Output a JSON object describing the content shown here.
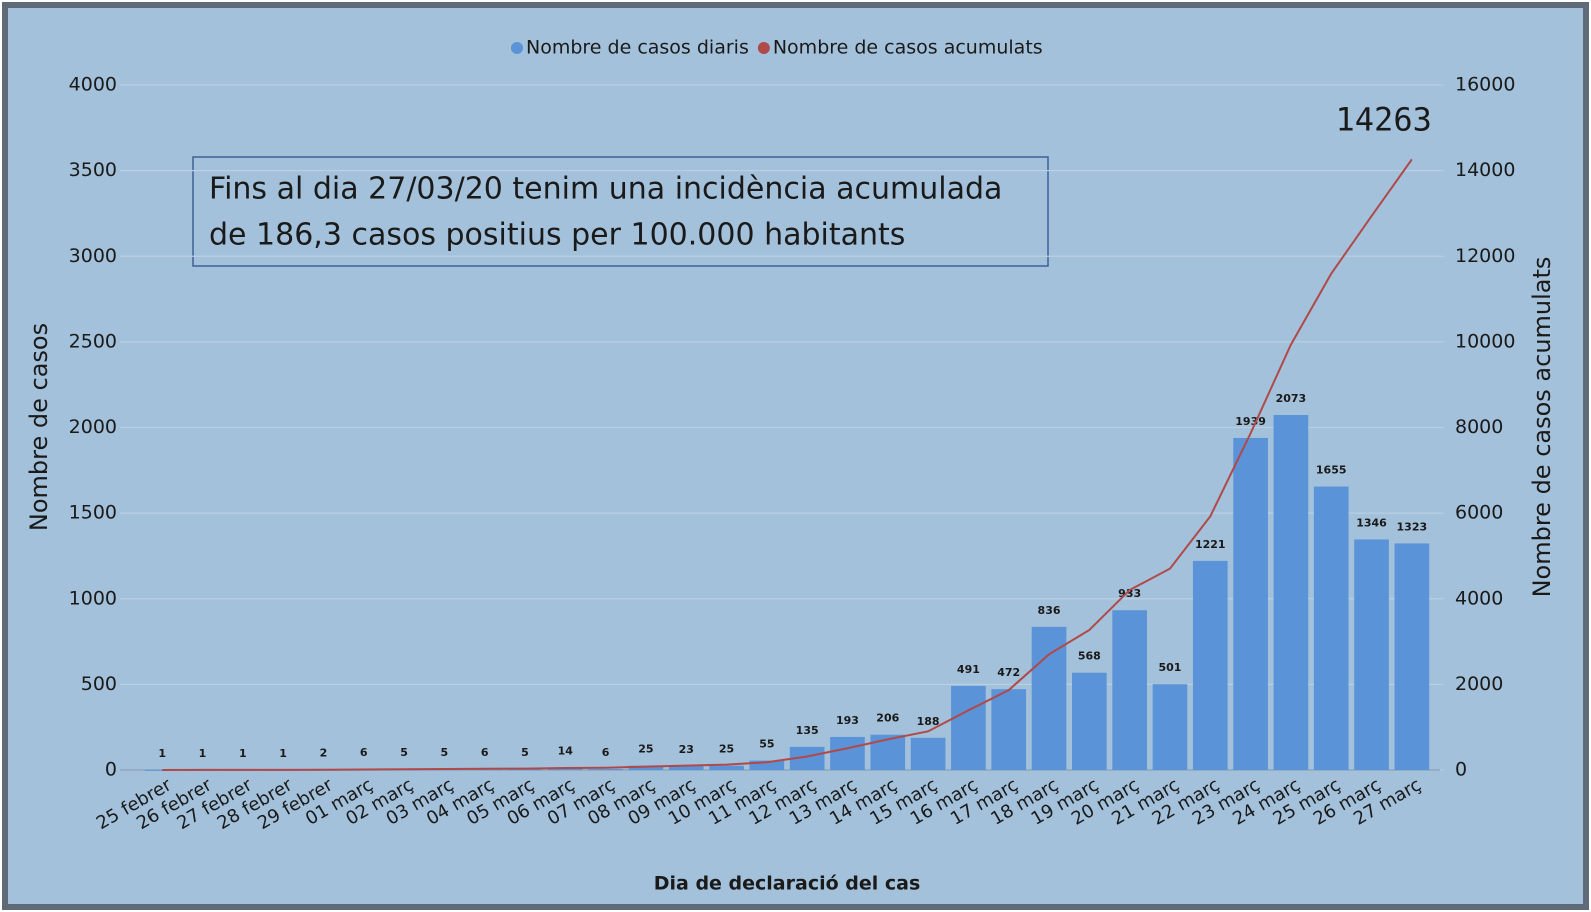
{
  "chart_data": {
    "type": "bar",
    "legend": "top",
    "categories": [
      "25 febrer",
      "26 febrer",
      "27 febrer",
      "28 febrer",
      "29 febrer",
      "01 març",
      "02 març",
      "03 març",
      "04 març",
      "05 març",
      "06 març",
      "07 març",
      "08 març",
      "09 març",
      "10 març",
      "11 març",
      "12 març",
      "13 març",
      "14 març",
      "15 març",
      "16 març",
      "17 març",
      "18 març",
      "19 març",
      "20 març",
      "21 març",
      "22 març",
      "23 març",
      "24 març",
      "25 març",
      "26 març",
      "27 març"
    ],
    "series": [
      {
        "name": "Nombre de casos diaris",
        "type": "bar",
        "color": "#5b93d8",
        "values": [
          1,
          1,
          1,
          1,
          2,
          6,
          5,
          5,
          6,
          5,
          14,
          6,
          25,
          23,
          25,
          55,
          135,
          193,
          206,
          188,
          491,
          472,
          836,
          568,
          933,
          501,
          1221,
          1939,
          2073,
          1655,
          1346,
          1323
        ]
      },
      {
        "name": "Nombre de casos acumulats",
        "type": "line",
        "axis": "y2",
        "color": "#b04a4a",
        "values": [
          1,
          2,
          3,
          4,
          6,
          12,
          17,
          22,
          28,
          33,
          47,
          53,
          78,
          101,
          126,
          181,
          316,
          509,
          715,
          903,
          1394,
          1866,
          2702,
          3270,
          4203,
          4704,
          5925,
          7864,
          9937,
          11592,
          12938,
          14263
        ]
      }
    ],
    "annotation": "14263",
    "text_box": [
      "Fins al dia 27/03/20 tenim una incidència acumulada",
      "de 186,3 casos positius per 100.000 habitants"
    ],
    "xlabel": "Dia de declaració del cas",
    "ylabel": "Nombre de casos",
    "y2label": "Nombre de casos acumulats",
    "ylim": [
      0,
      4000
    ],
    "yticks": [
      0,
      500,
      1000,
      1500,
      2000,
      2500,
      3000,
      3500,
      4000
    ],
    "y2lim": [
      0,
      16000
    ],
    "y2ticks": [
      0,
      2000,
      4000,
      6000,
      8000,
      10000,
      12000,
      14000,
      16000
    ],
    "grid": true
  }
}
